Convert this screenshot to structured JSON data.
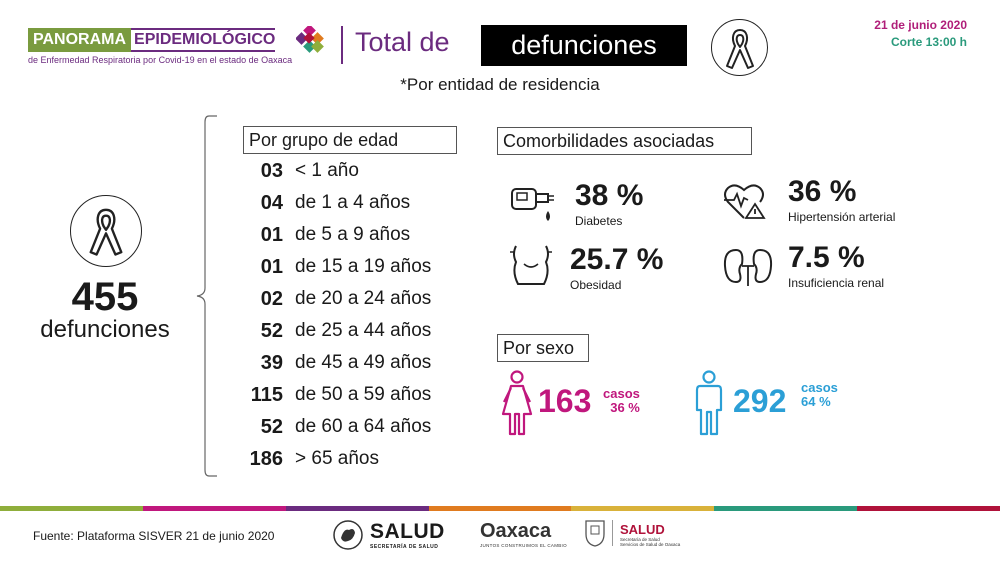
{
  "header": {
    "brand_a": "PANORAMA",
    "brand_b": "EPIDEMIOLÓGICO",
    "brand_sub": "de Enfermedad Respiratoria por Covid-19 en el estado de Oaxaca",
    "title_a": "Total de",
    "title_b": "defunciones",
    "date": "21 de junio 2020",
    "cutoff": "Corte 13:00 h",
    "subtitle": "*Por entidad de residencia"
  },
  "total": {
    "value": "455",
    "label": "defunciones"
  },
  "age": {
    "title": "Por grupo de edad",
    "rows": [
      {
        "n": "03",
        "label": "< 1 año"
      },
      {
        "n": "04",
        "label": "de 1 a 4 años"
      },
      {
        "n": "01",
        "label": "de 5 a 9 años"
      },
      {
        "n": "01",
        "label": "de 15 a 19 años"
      },
      {
        "n": "02",
        "label": "de 20 a 24 años"
      },
      {
        "n": "52",
        "label": "de 25 a 44 años"
      },
      {
        "n": "39",
        "label": "de 45 a 49 años"
      },
      {
        "n": "115",
        "label": "de 50 a 59 años"
      },
      {
        "n": "52",
        "label": "de 60 a 64 años"
      },
      {
        "n": "186",
        "label": "> 65 años"
      }
    ]
  },
  "comorbidities": {
    "title": "Comorbilidades asociadas",
    "diabetes": {
      "pct": "38 %",
      "label": "Diabetes"
    },
    "hypertension": {
      "pct": "36 %",
      "label": "Hipertensión arterial"
    },
    "obesity": {
      "pct": "25.7 %",
      "label": "Obesidad"
    },
    "renal": {
      "pct": "7.5 %",
      "label": "Insuficiencia renal"
    }
  },
  "sex": {
    "title": "Por sexo",
    "female": {
      "count": "163",
      "casos": "casos",
      "pct": "36 %",
      "color": "#c0177d"
    },
    "male": {
      "count": "292",
      "casos": "casos",
      "pct": "64 %",
      "color": "#2b9fd6"
    }
  },
  "footer": {
    "source": "Fuente: Plataforma SISVER 21 de junio 2020",
    "salud": "SALUD",
    "salud_sub": "SECRETARÍA DE SALUD",
    "oaxaca": "Oaxaca",
    "oaxaca_sub": "JUNTOS CONSTRUIMOS EL CAMBIO",
    "salud2": "SALUD",
    "salud2_sub_1": "Secretaría de Salud",
    "salud2_sub_2": "Servicios de Salud de Oaxaca",
    "stripe_colors": [
      "#8fae3b",
      "#c0177d",
      "#6b2b7f",
      "#e07b1f",
      "#d9b23a",
      "#2a9a7c",
      "#b0123a"
    ]
  },
  "colors": {
    "purple": "#6b2b7f",
    "green": "#7a9b3f",
    "magenta": "#c0177d",
    "blue": "#2b9fd6"
  }
}
